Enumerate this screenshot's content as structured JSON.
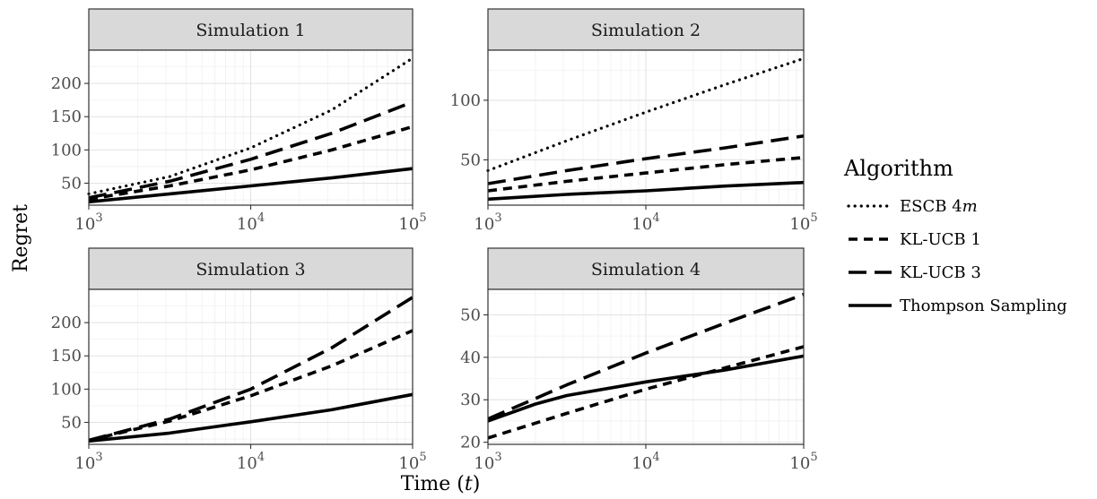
{
  "chart_data": {
    "type": "line",
    "xlabel": "Time (t)",
    "ylabel": "Regret",
    "legend": {
      "title": "Algorithm",
      "placement": "right",
      "entries": [
        "ESCB 4m",
        "KL-UCB 1",
        "KL-UCB 3",
        "Thompson Sampling"
      ]
    },
    "series_styles": {
      "ESCB 4m": "dotted",
      "KL-UCB 1": "short-dashed",
      "KL-UCB 3": "long-dashed",
      "Thompson Sampling": "solid"
    },
    "x_scale": "log10",
    "xlim": [
      1000,
      100000
    ],
    "x_ticks": [
      1000,
      10000,
      100000
    ],
    "x_tick_labels": [
      "10^3",
      "10^4",
      "10^5"
    ],
    "grid": true,
    "panels": [
      {
        "title": "Simulation 1",
        "ylim": [
          17,
          250
        ],
        "y_ticks": [
          50,
          100,
          150,
          200
        ],
        "x": [
          1000,
          3160,
          10000,
          31600,
          100000
        ],
        "series": [
          {
            "name": "ESCB 4m",
            "values": [
              34,
              60,
              103,
              160,
              238
            ]
          },
          {
            "name": "KL-UCB 1",
            "values": [
              26,
              46,
              70,
              100,
              135
            ]
          },
          {
            "name": "KL-UCB 3",
            "values": [
              28,
              53,
              86,
              125,
              172
            ]
          },
          {
            "name": "Thompson Sampling",
            "values": [
              22,
              34,
              46,
              58,
              72
            ]
          }
        ]
      },
      {
        "title": "Simulation 2",
        "ylim": [
          12,
          142
        ],
        "y_ticks": [
          50,
          100
        ],
        "x": [
          1000,
          3160,
          10000,
          31600,
          100000
        ],
        "series": [
          {
            "name": "ESCB 4m",
            "values": [
              41,
              66,
              90,
              113,
              135
            ]
          },
          {
            "name": "KL-UCB 1",
            "values": [
              24,
              32,
              39,
              46,
              52
            ]
          },
          {
            "name": "KL-UCB 3",
            "values": [
              30,
              41,
              51,
              60,
              70
            ]
          },
          {
            "name": "Thompson Sampling",
            "values": [
              17,
              21,
              24,
              28,
              31
            ]
          }
        ]
      },
      {
        "title": "Simulation 3",
        "ylim": [
          17,
          250
        ],
        "y_ticks": [
          50,
          100,
          150,
          200
        ],
        "x": [
          1000,
          3160,
          10000,
          31600,
          100000
        ],
        "series": [
          {
            "name": "KL-UCB 1",
            "values": [
              23,
              52,
              90,
              135,
              188
            ]
          },
          {
            "name": "KL-UCB 3",
            "values": [
              23,
              55,
              100,
              162,
              238
            ]
          },
          {
            "name": "Thompson Sampling",
            "values": [
              22,
              34,
              51,
              69,
              92
            ]
          }
        ]
      },
      {
        "title": "Simulation 4",
        "ylim": [
          19.5,
          56
        ],
        "y_ticks": [
          20,
          30,
          40,
          50
        ],
        "x": [
          1000,
          2000,
          3160,
          10000,
          31600,
          100000
        ],
        "series": [
          {
            "name": "KL-UCB 1",
            "values": [
              21,
              24.5,
              26.8,
              32.5,
              37.5,
              42.5
            ]
          },
          {
            "name": "KL-UCB 3",
            "values": [
              25.5,
              30.3,
              33.5,
              41,
              48,
              54.8
            ]
          },
          {
            "name": "Thompson Sampling",
            "values": [
              25,
              29,
              31,
              34.2,
              37,
              40.3
            ]
          }
        ]
      }
    ]
  }
}
